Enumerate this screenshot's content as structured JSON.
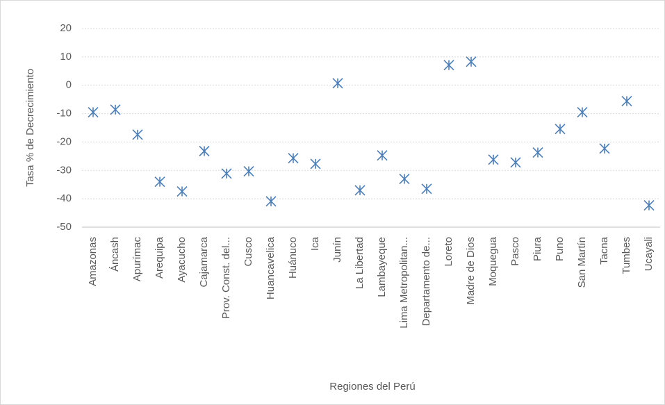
{
  "chart_data": {
    "type": "scatter",
    "y_label": "Tasa % de Decrecimiento",
    "x_label": "Regiones del Perú",
    "categories": [
      "Amazonas",
      "Áncash",
      "Apurímac",
      "Arequipa",
      "Ayacucho",
      "Cajamarca",
      "Prov. Const. del...",
      "Cusco",
      "Huancavelica",
      "Huánuco",
      "Ica",
      "Junín",
      "La Libertad",
      "Lambayeque",
      "Lima Metropolitan...",
      "Departamento de...",
      "Loreto",
      "Madre de Dios",
      "Moquegua",
      "Pasco",
      "Piura",
      "Puno",
      "San Martín",
      "Tacna",
      "Tumbes",
      "Ucayali"
    ],
    "values": [
      -9.5,
      -8.6,
      -17.4,
      -34,
      -37.4,
      -23.2,
      -31.1,
      -30.3,
      -40.9,
      -25.7,
      -27.7,
      0.7,
      -37,
      -24.7,
      -33,
      -36.5,
      7.1,
      8.3,
      -26.2,
      -27.2,
      -23.7,
      -15.4,
      -9.5,
      -22.3,
      -5.6,
      -42.3
    ],
    "color": "#4a7ebb",
    "ylim": [
      -50,
      20
    ],
    "yticks": [
      -50,
      -40,
      -30,
      -20,
      -10,
      0,
      10,
      20
    ],
    "grid": true
  }
}
